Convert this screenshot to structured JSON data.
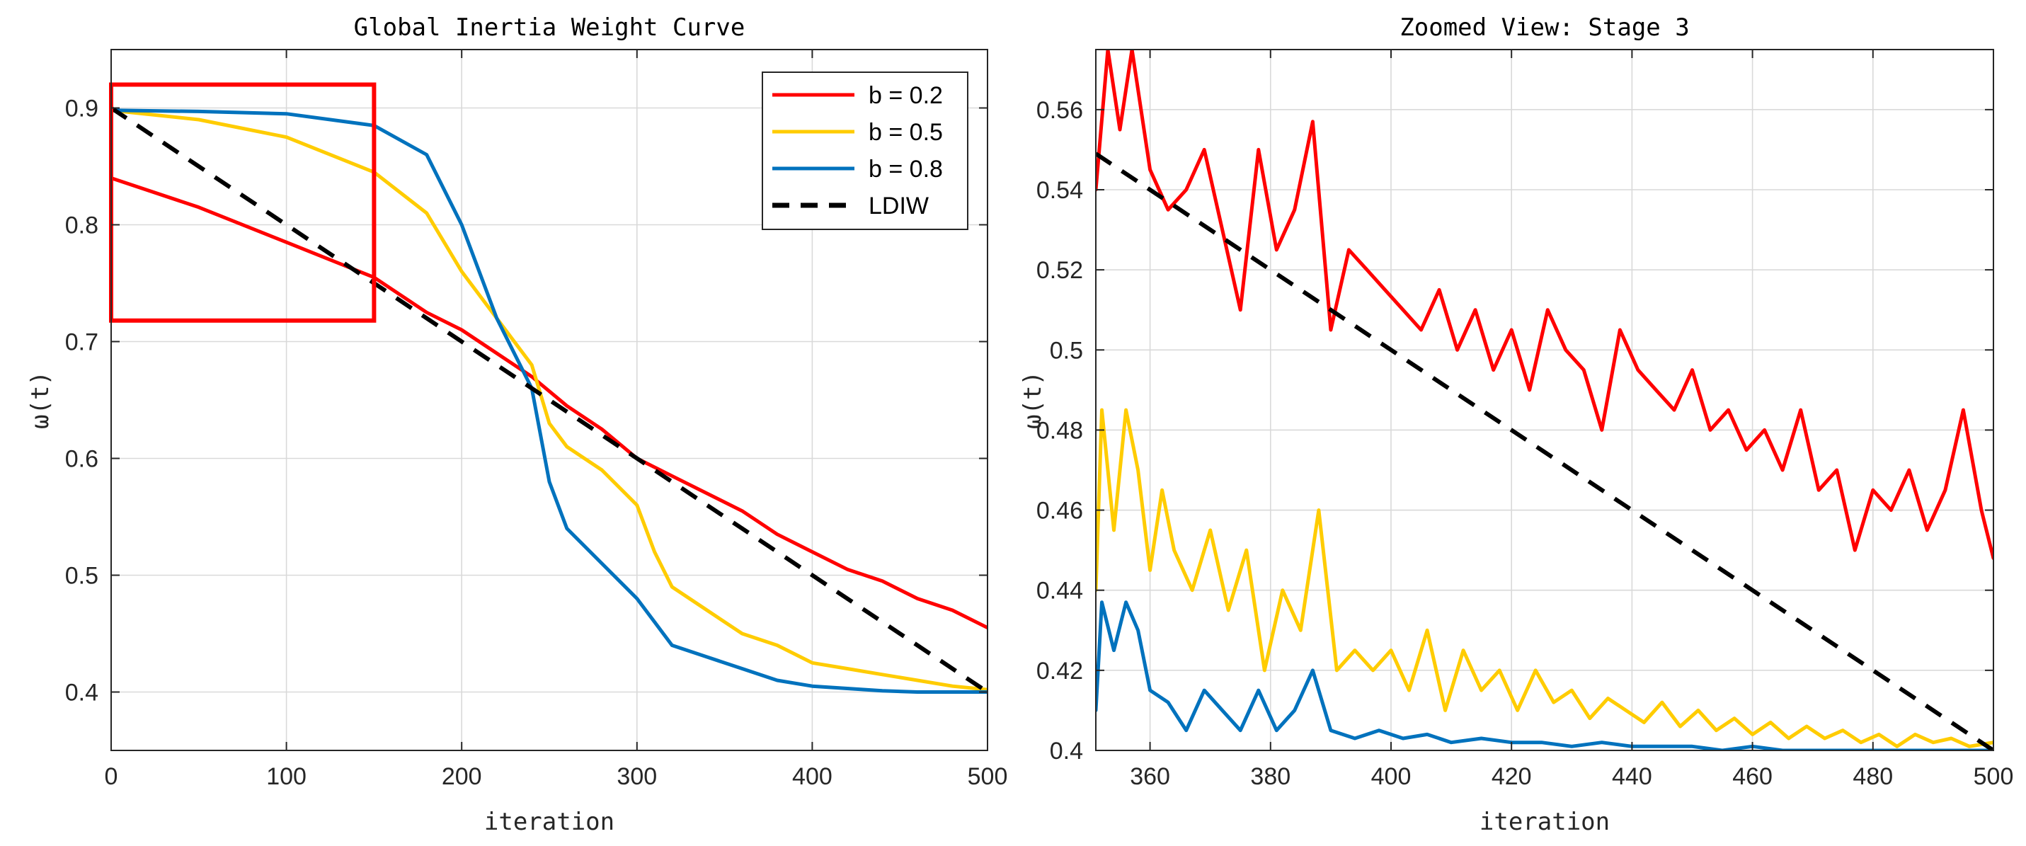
{
  "chart_data": [
    {
      "type": "line",
      "title": "Global Inertia Weight Curve",
      "xlabel": "iteration",
      "ylabel": "ω(t)",
      "xlim": [
        0,
        500
      ],
      "ylim": [
        0.35,
        0.95
      ],
      "xticks": [
        "0",
        "100",
        "200",
        "300",
        "400",
        "500"
      ],
      "yticks": [
        "0.4",
        "0.5",
        "0.6",
        "0.7",
        "0.8",
        "0.9"
      ],
      "grid": true,
      "legend_position": "top-right",
      "highlight_box": {
        "x0": 0,
        "x1": 150,
        "y0": 0.718,
        "y1": 0.92,
        "color": "#ff0000"
      },
      "series": [
        {
          "name": "b = 0.2",
          "color": "#ff0000",
          "dash": false,
          "x": [
            0,
            50,
            100,
            150,
            180,
            200,
            220,
            240,
            260,
            280,
            300,
            320,
            340,
            360,
            380,
            400,
            420,
            440,
            460,
            480,
            500
          ],
          "y": [
            0.84,
            0.815,
            0.785,
            0.755,
            0.725,
            0.71,
            0.69,
            0.67,
            0.645,
            0.625,
            0.6,
            0.585,
            0.57,
            0.555,
            0.535,
            0.52,
            0.505,
            0.495,
            0.48,
            0.47,
            0.455
          ]
        },
        {
          "name": "b = 0.5",
          "color": "#ffcc00",
          "dash": false,
          "x": [
            0,
            50,
            100,
            150,
            180,
            200,
            220,
            240,
            250,
            260,
            280,
            300,
            310,
            320,
            340,
            360,
            380,
            400,
            420,
            440,
            460,
            480,
            500
          ],
          "y": [
            0.898,
            0.89,
            0.875,
            0.845,
            0.81,
            0.76,
            0.72,
            0.68,
            0.63,
            0.61,
            0.59,
            0.56,
            0.52,
            0.49,
            0.47,
            0.45,
            0.44,
            0.425,
            0.42,
            0.415,
            0.41,
            0.405,
            0.402
          ]
        },
        {
          "name": "b = 0.8",
          "color": "#0072bd",
          "dash": false,
          "x": [
            0,
            50,
            100,
            150,
            180,
            200,
            220,
            240,
            250,
            260,
            280,
            300,
            310,
            320,
            340,
            360,
            380,
            400,
            420,
            440,
            460,
            480,
            500
          ],
          "y": [
            0.898,
            0.897,
            0.895,
            0.885,
            0.86,
            0.8,
            0.72,
            0.66,
            0.58,
            0.54,
            0.51,
            0.48,
            0.46,
            0.44,
            0.43,
            0.42,
            0.41,
            0.405,
            0.403,
            0.401,
            0.4,
            0.4,
            0.4
          ]
        },
        {
          "name": "LDIW",
          "color": "#000000",
          "dash": true,
          "x": [
            0,
            500
          ],
          "y": [
            0.9,
            0.4
          ]
        }
      ]
    },
    {
      "type": "line",
      "title": "Zoomed View: Stage 3",
      "xlabel": "iteration",
      "ylabel": "ω(t)",
      "xlim": [
        351,
        500
      ],
      "ylim": [
        0.4,
        0.575
      ],
      "xticks": [
        "360",
        "380",
        "400",
        "420",
        "440",
        "460",
        "480",
        "500"
      ],
      "yticks": [
        "0.4",
        "0.42",
        "0.44",
        "0.46",
        "0.48",
        "0.5",
        "0.52",
        "0.54",
        "0.56"
      ],
      "grid": true,
      "series": [
        {
          "name": "b = 0.2",
          "color": "#ff0000",
          "dash": false,
          "x": [
            351,
            353,
            355,
            357,
            360,
            363,
            366,
            369,
            372,
            375,
            378,
            381,
            384,
            387,
            390,
            393,
            396,
            399,
            402,
            405,
            408,
            411,
            414,
            417,
            420,
            423,
            426,
            429,
            432,
            435,
            438,
            441,
            444,
            447,
            450,
            453,
            456,
            459,
            462,
            465,
            468,
            471,
            474,
            477,
            480,
            483,
            486,
            489,
            492,
            495,
            498,
            500
          ],
          "y": [
            0.54,
            0.575,
            0.555,
            0.575,
            0.545,
            0.535,
            0.54,
            0.55,
            0.53,
            0.51,
            0.55,
            0.525,
            0.535,
            0.557,
            0.505,
            0.525,
            0.52,
            0.515,
            0.51,
            0.505,
            0.515,
            0.5,
            0.51,
            0.495,
            0.505,
            0.49,
            0.51,
            0.5,
            0.495,
            0.48,
            0.505,
            0.495,
            0.49,
            0.485,
            0.495,
            0.48,
            0.485,
            0.475,
            0.48,
            0.47,
            0.485,
            0.465,
            0.47,
            0.45,
            0.465,
            0.46,
            0.47,
            0.455,
            0.465,
            0.485,
            0.46,
            0.448
          ]
        },
        {
          "name": "b = 0.5",
          "color": "#ffcc00",
          "dash": false,
          "x": [
            351,
            352,
            354,
            356,
            358,
            360,
            362,
            364,
            367,
            370,
            373,
            376,
            379,
            382,
            385,
            388,
            391,
            394,
            397,
            400,
            403,
            406,
            409,
            412,
            415,
            418,
            421,
            424,
            427,
            430,
            433,
            436,
            439,
            442,
            445,
            448,
            451,
            454,
            457,
            460,
            463,
            466,
            469,
            472,
            475,
            478,
            481,
            484,
            487,
            490,
            493,
            496,
            500
          ],
          "y": [
            0.44,
            0.485,
            0.455,
            0.485,
            0.47,
            0.445,
            0.465,
            0.45,
            0.44,
            0.455,
            0.435,
            0.45,
            0.42,
            0.44,
            0.43,
            0.46,
            0.42,
            0.425,
            0.42,
            0.425,
            0.415,
            0.43,
            0.41,
            0.425,
            0.415,
            0.42,
            0.41,
            0.42,
            0.412,
            0.415,
            0.408,
            0.413,
            0.41,
            0.407,
            0.412,
            0.406,
            0.41,
            0.405,
            0.408,
            0.404,
            0.407,
            0.403,
            0.406,
            0.403,
            0.405,
            0.402,
            0.404,
            0.401,
            0.404,
            0.402,
            0.403,
            0.401,
            0.402
          ]
        },
        {
          "name": "b = 0.8",
          "color": "#0072bd",
          "dash": false,
          "x": [
            351,
            352,
            354,
            356,
            358,
            360,
            363,
            366,
            369,
            372,
            375,
            378,
            381,
            384,
            387,
            390,
            394,
            398,
            402,
            406,
            410,
            415,
            420,
            425,
            430,
            435,
            440,
            445,
            450,
            455,
            460,
            465,
            470,
            475,
            480,
            485,
            490,
            495,
            500
          ],
          "y": [
            0.41,
            0.437,
            0.425,
            0.437,
            0.43,
            0.415,
            0.412,
            0.405,
            0.415,
            0.41,
            0.405,
            0.415,
            0.405,
            0.41,
            0.42,
            0.405,
            0.403,
            0.405,
            0.403,
            0.404,
            0.402,
            0.403,
            0.402,
            0.402,
            0.401,
            0.402,
            0.401,
            0.401,
            0.401,
            0.4,
            0.401,
            0.4,
            0.4,
            0.4,
            0.4,
            0.4,
            0.4,
            0.4,
            0.4
          ]
        },
        {
          "name": "LDIW",
          "color": "#000000",
          "dash": true,
          "x": [
            351,
            500
          ],
          "y": [
            0.549,
            0.4
          ]
        }
      ]
    }
  ]
}
